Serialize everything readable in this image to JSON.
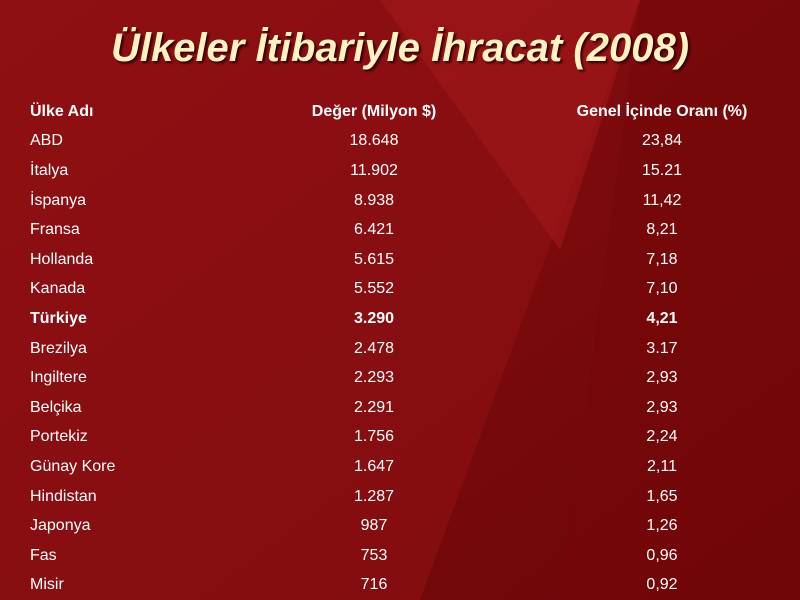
{
  "title": "Ülkeler İtibariyle İhracat (2008)",
  "table": {
    "header": [
      "Ülke Adı",
      "Değer (Milyon $)",
      "Genel İçinde Oranı (%)"
    ],
    "rows": [
      [
        "ABD",
        "18.648",
        "23,84"
      ],
      [
        "İtalya",
        "11.902",
        "15.21"
      ],
      [
        "İspanya",
        "8.938",
        "11,42"
      ],
      [
        "Fransa",
        "6.421",
        "8,21"
      ],
      [
        "Hollanda",
        "5.615",
        "7,18"
      ],
      [
        "Kanada",
        "5.552",
        "7,10"
      ],
      [
        "Türkiye",
        "3.290",
        "4,21"
      ],
      [
        "Brezilya",
        "2.478",
        "3.17"
      ],
      [
        "Ingiltere",
        "2.293",
        "2,93"
      ],
      [
        "Belçika",
        "2.291",
        "2,93"
      ],
      [
        "Portekiz",
        "1.756",
        "2,24"
      ],
      [
        "Günay Kore",
        "1.647",
        "2,11"
      ],
      [
        "Hindistan",
        "1.287",
        "1,65"
      ],
      [
        "Japonya",
        "987",
        "1,26"
      ],
      [
        "Fas",
        "753",
        "0,96"
      ],
      [
        "Misir",
        "716",
        "0,92"
      ]
    ]
  }
}
